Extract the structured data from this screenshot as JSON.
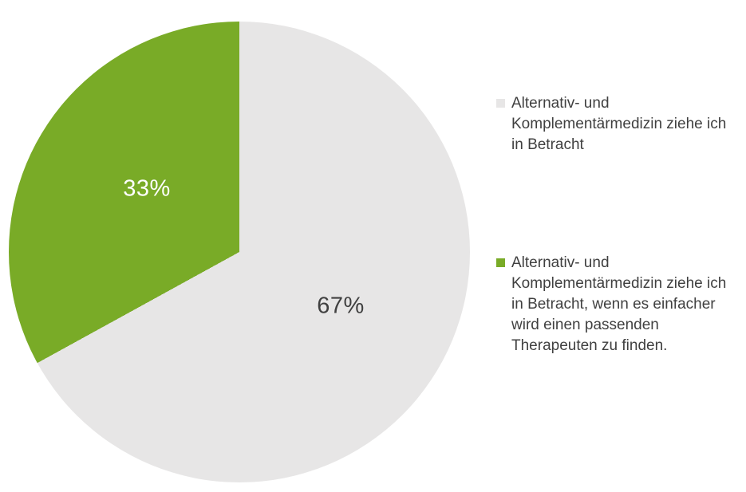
{
  "chart_data": {
    "type": "pie",
    "title": "",
    "legend_position": "right",
    "start_angle_deg": 0,
    "direction": "clockwise",
    "background_color": "#ffffff",
    "slices": [
      {
        "label": "Alternativ- und Komplementärmedizin ziehe ich in Betracht",
        "value": 67,
        "data_label": "67%",
        "color": "#e7e6e6",
        "label_color": "#404040"
      },
      {
        "label": "Alternativ- und Komplementärmedizin ziehe ich in Betracht, wenn es einfacher wird einen passenden Therapeuten zu finden.",
        "value": 33,
        "data_label": "33%",
        "color": "#79ab27",
        "label_color": "#ffffff"
      }
    ]
  }
}
